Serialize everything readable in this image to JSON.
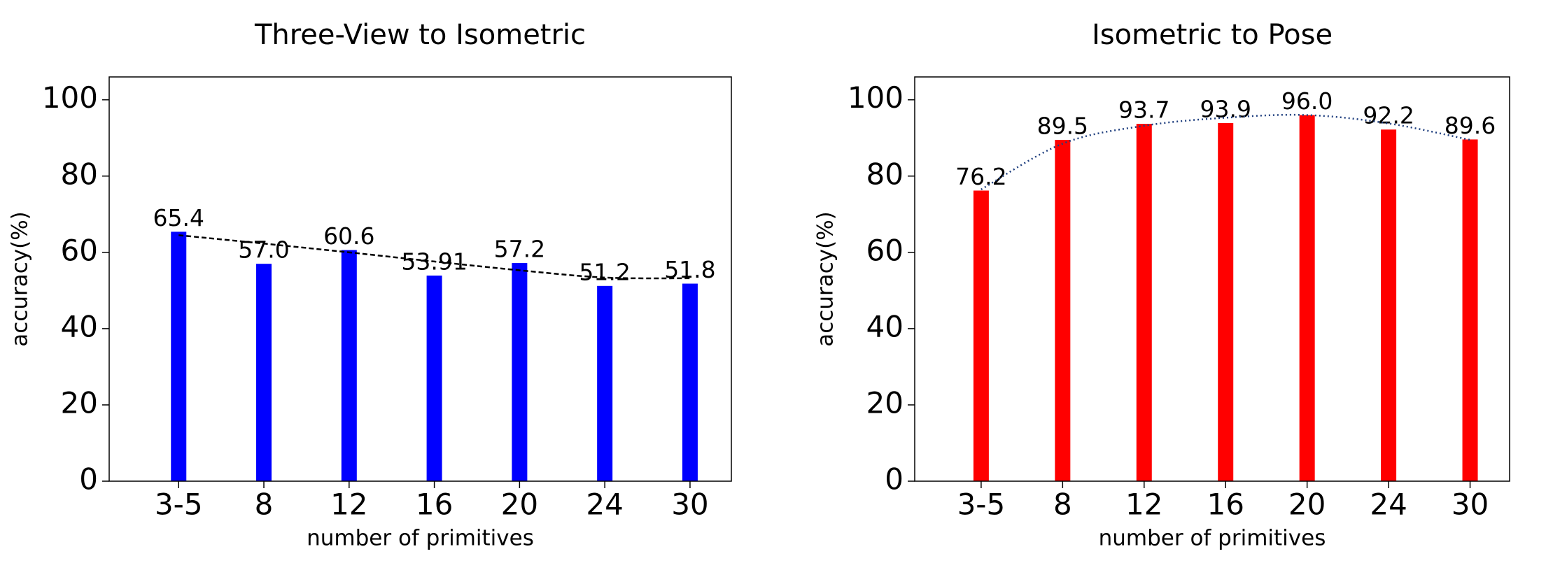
{
  "chart_data": [
    {
      "type": "bar",
      "title": "Three-View to Isometric",
      "xlabel": "number of primitives",
      "ylabel": "accuracy(%)",
      "categories": [
        "3-5",
        "8",
        "12",
        "16",
        "20",
        "24",
        "30"
      ],
      "values": [
        65.4,
        57.0,
        60.6,
        53.91,
        57.2,
        51.2,
        51.8
      ],
      "value_labels": [
        "65.4",
        "57.0",
        "60.6",
        "53.91",
        "57.2",
        "51.2",
        "51.8"
      ],
      "color": "#0000ff",
      "trend": {
        "values": [
          64.5,
          62.3,
          60.0,
          57.6,
          55.3,
          53.4,
          53.2
        ],
        "color": "#000000",
        "dash": "dashed"
      },
      "ylim": [
        0,
        106
      ],
      "yticks": [
        0,
        20,
        40,
        60,
        80,
        100
      ]
    },
    {
      "type": "bar",
      "title": "Isometric to Pose",
      "xlabel": "number of primitives",
      "ylabel": "accuracy(%)",
      "categories": [
        "3-5",
        "8",
        "12",
        "16",
        "20",
        "24",
        "30"
      ],
      "values": [
        76.2,
        89.5,
        93.7,
        93.9,
        96.0,
        92.2,
        89.6
      ],
      "value_labels": [
        "76.2",
        "89.5",
        "93.7",
        "93.9",
        "96.0",
        "92.2",
        "89.6"
      ],
      "color": "#ff0000",
      "trend": {
        "values": [
          76.5,
          88.5,
          93.2,
          95.3,
          96.0,
          93.8,
          89.5
        ],
        "color": "#1f3f7f",
        "dash": "dotted"
      },
      "ylim": [
        0,
        106
      ],
      "yticks": [
        0,
        20,
        40,
        60,
        80,
        100
      ]
    }
  ]
}
